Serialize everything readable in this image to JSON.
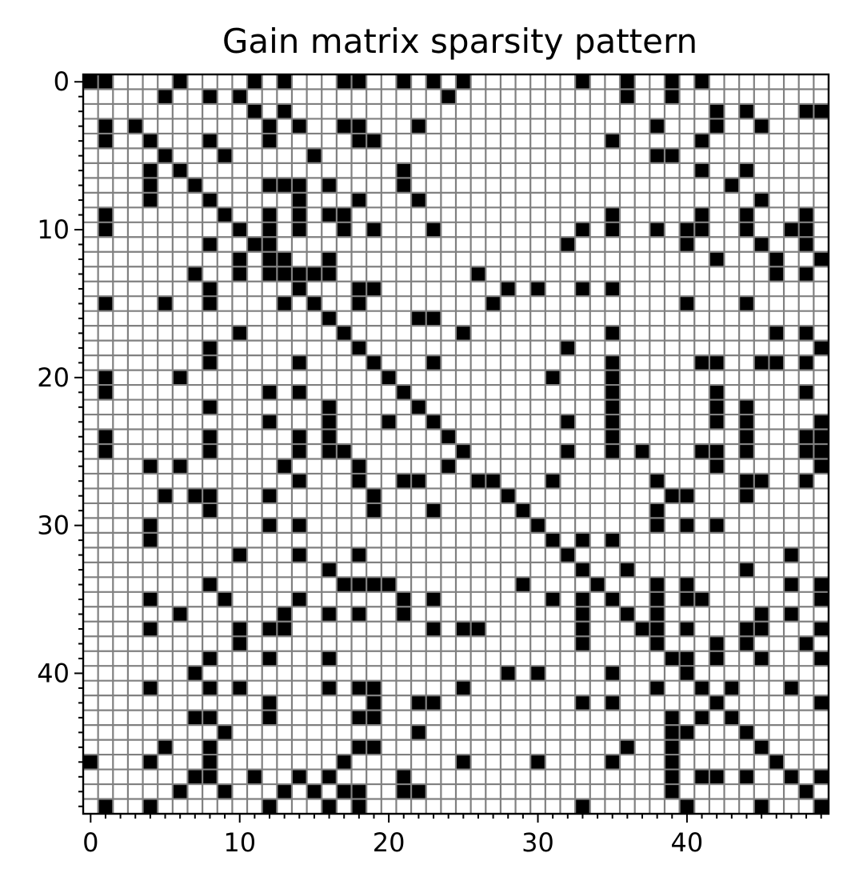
{
  "chart_data": {
    "type": "heatmap",
    "title": "Gain matrix sparsity pattern",
    "xlabel": "",
    "ylabel": "",
    "n_rows": 50,
    "n_cols": 50,
    "x_ticks": [
      0,
      10,
      20,
      30,
      40
    ],
    "y_ticks": [
      0,
      10,
      20,
      30,
      40
    ],
    "x_tick_labels": [
      "0",
      "10",
      "20",
      "30",
      "40"
    ],
    "y_tick_labels": [
      "0",
      "10",
      "20",
      "30",
      "40"
    ],
    "xlim": [
      -0.5,
      49.5
    ],
    "ylim": [
      49.5,
      -0.5
    ],
    "grid": true,
    "colors": {
      "nonzero": "#000000",
      "zero": "#ffffff",
      "grid": "#808080"
    },
    "nonzeros": [
      [
        0,
        0
      ],
      [
        0,
        1
      ],
      [
        0,
        6
      ],
      [
        0,
        11
      ],
      [
        0,
        13
      ],
      [
        0,
        17
      ],
      [
        0,
        18
      ],
      [
        0,
        21
      ],
      [
        0,
        23
      ],
      [
        0,
        25
      ],
      [
        0,
        33
      ],
      [
        0,
        36
      ],
      [
        0,
        39
      ],
      [
        0,
        41
      ],
      [
        1,
        5
      ],
      [
        1,
        8
      ],
      [
        1,
        10
      ],
      [
        1,
        24
      ],
      [
        1,
        36
      ],
      [
        1,
        39
      ],
      [
        2,
        11
      ],
      [
        2,
        13
      ],
      [
        2,
        42
      ],
      [
        2,
        44
      ],
      [
        2,
        48
      ],
      [
        2,
        49
      ],
      [
        3,
        1
      ],
      [
        3,
        3
      ],
      [
        3,
        12
      ],
      [
        3,
        14
      ],
      [
        3,
        17
      ],
      [
        3,
        18
      ],
      [
        3,
        22
      ],
      [
        3,
        38
      ],
      [
        3,
        42
      ],
      [
        3,
        45
      ],
      [
        4,
        1
      ],
      [
        4,
        4
      ],
      [
        4,
        8
      ],
      [
        4,
        12
      ],
      [
        4,
        18
      ],
      [
        4,
        19
      ],
      [
        4,
        35
      ],
      [
        4,
        41
      ],
      [
        5,
        5
      ],
      [
        5,
        9
      ],
      [
        5,
        15
      ],
      [
        5,
        38
      ],
      [
        5,
        39
      ],
      [
        6,
        4
      ],
      [
        6,
        6
      ],
      [
        6,
        21
      ],
      [
        6,
        41
      ],
      [
        6,
        44
      ],
      [
        7,
        4
      ],
      [
        7,
        7
      ],
      [
        7,
        12
      ],
      [
        7,
        13
      ],
      [
        7,
        14
      ],
      [
        7,
        16
      ],
      [
        7,
        21
      ],
      [
        7,
        43
      ],
      [
        8,
        4
      ],
      [
        8,
        8
      ],
      [
        8,
        14
      ],
      [
        8,
        18
      ],
      [
        8,
        22
      ],
      [
        8,
        45
      ],
      [
        9,
        1
      ],
      [
        9,
        9
      ],
      [
        9,
        12
      ],
      [
        9,
        14
      ],
      [
        9,
        16
      ],
      [
        9,
        17
      ],
      [
        9,
        35
      ],
      [
        9,
        41
      ],
      [
        9,
        44
      ],
      [
        9,
        48
      ],
      [
        10,
        1
      ],
      [
        10,
        10
      ],
      [
        10,
        12
      ],
      [
        10,
        14
      ],
      [
        10,
        17
      ],
      [
        10,
        19
      ],
      [
        10,
        23
      ],
      [
        10,
        33
      ],
      [
        10,
        35
      ],
      [
        10,
        38
      ],
      [
        10,
        40
      ],
      [
        10,
        41
      ],
      [
        10,
        44
      ],
      [
        10,
        47
      ],
      [
        10,
        48
      ],
      [
        11,
        8
      ],
      [
        11,
        11
      ],
      [
        11,
        12
      ],
      [
        11,
        32
      ],
      [
        11,
        40
      ],
      [
        11,
        45
      ],
      [
        11,
        48
      ],
      [
        12,
        10
      ],
      [
        12,
        12
      ],
      [
        12,
        13
      ],
      [
        12,
        16
      ],
      [
        12,
        42
      ],
      [
        12,
        46
      ],
      [
        12,
        49
      ],
      [
        13,
        7
      ],
      [
        13,
        10
      ],
      [
        13,
        12
      ],
      [
        13,
        13
      ],
      [
        13,
        14
      ],
      [
        13,
        15
      ],
      [
        13,
        16
      ],
      [
        13,
        26
      ],
      [
        13,
        46
      ],
      [
        13,
        48
      ],
      [
        14,
        8
      ],
      [
        14,
        14
      ],
      [
        14,
        18
      ],
      [
        14,
        19
      ],
      [
        14,
        28
      ],
      [
        14,
        30
      ],
      [
        14,
        33
      ],
      [
        14,
        35
      ],
      [
        15,
        1
      ],
      [
        15,
        5
      ],
      [
        15,
        8
      ],
      [
        15,
        13
      ],
      [
        15,
        15
      ],
      [
        15,
        18
      ],
      [
        15,
        27
      ],
      [
        15,
        40
      ],
      [
        15,
        44
      ],
      [
        16,
        16
      ],
      [
        16,
        22
      ],
      [
        16,
        23
      ],
      [
        17,
        10
      ],
      [
        17,
        17
      ],
      [
        17,
        25
      ],
      [
        17,
        35
      ],
      [
        17,
        46
      ],
      [
        17,
        48
      ],
      [
        18,
        8
      ],
      [
        18,
        18
      ],
      [
        18,
        32
      ],
      [
        18,
        49
      ],
      [
        19,
        8
      ],
      [
        19,
        14
      ],
      [
        19,
        19
      ],
      [
        19,
        23
      ],
      [
        19,
        35
      ],
      [
        19,
        41
      ],
      [
        19,
        42
      ],
      [
        19,
        45
      ],
      [
        19,
        46
      ],
      [
        19,
        48
      ],
      [
        20,
        1
      ],
      [
        20,
        6
      ],
      [
        20,
        20
      ],
      [
        20,
        31
      ],
      [
        20,
        35
      ],
      [
        21,
        1
      ],
      [
        21,
        12
      ],
      [
        21,
        14
      ],
      [
        21,
        21
      ],
      [
        21,
        35
      ],
      [
        21,
        42
      ],
      [
        21,
        48
      ],
      [
        22,
        8
      ],
      [
        22,
        16
      ],
      [
        22,
        22
      ],
      [
        22,
        35
      ],
      [
        22,
        42
      ],
      [
        22,
        44
      ],
      [
        23,
        12
      ],
      [
        23,
        16
      ],
      [
        23,
        20
      ],
      [
        23,
        23
      ],
      [
        23,
        32
      ],
      [
        23,
        35
      ],
      [
        23,
        42
      ],
      [
        23,
        44
      ],
      [
        23,
        49
      ],
      [
        24,
        1
      ],
      [
        24,
        8
      ],
      [
        24,
        14
      ],
      [
        24,
        16
      ],
      [
        24,
        24
      ],
      [
        24,
        35
      ],
      [
        24,
        44
      ],
      [
        24,
        48
      ],
      [
        24,
        49
      ],
      [
        25,
        1
      ],
      [
        25,
        8
      ],
      [
        25,
        14
      ],
      [
        25,
        16
      ],
      [
        25,
        17
      ],
      [
        25,
        25
      ],
      [
        25,
        32
      ],
      [
        25,
        35
      ],
      [
        25,
        37
      ],
      [
        25,
        41
      ],
      [
        25,
        42
      ],
      [
        25,
        44
      ],
      [
        25,
        48
      ],
      [
        25,
        49
      ],
      [
        26,
        4
      ],
      [
        26,
        6
      ],
      [
        26,
        13
      ],
      [
        26,
        18
      ],
      [
        26,
        24
      ],
      [
        26,
        42
      ],
      [
        26,
        49
      ],
      [
        27,
        14
      ],
      [
        27,
        18
      ],
      [
        27,
        21
      ],
      [
        27,
        22
      ],
      [
        27,
        26
      ],
      [
        27,
        27
      ],
      [
        27,
        31
      ],
      [
        27,
        38
      ],
      [
        27,
        44
      ],
      [
        27,
        45
      ],
      [
        27,
        48
      ],
      [
        28,
        5
      ],
      [
        28,
        7
      ],
      [
        28,
        8
      ],
      [
        28,
        12
      ],
      [
        28,
        19
      ],
      [
        28,
        28
      ],
      [
        28,
        39
      ],
      [
        28,
        40
      ],
      [
        28,
        44
      ],
      [
        29,
        8
      ],
      [
        29,
        19
      ],
      [
        29,
        23
      ],
      [
        29,
        29
      ],
      [
        29,
        38
      ],
      [
        30,
        4
      ],
      [
        30,
        12
      ],
      [
        30,
        14
      ],
      [
        30,
        30
      ],
      [
        30,
        38
      ],
      [
        30,
        40
      ],
      [
        30,
        42
      ],
      [
        31,
        4
      ],
      [
        31,
        31
      ],
      [
        31,
        33
      ],
      [
        31,
        35
      ],
      [
        32,
        10
      ],
      [
        32,
        14
      ],
      [
        32,
        18
      ],
      [
        32,
        32
      ],
      [
        32,
        47
      ],
      [
        33,
        16
      ],
      [
        33,
        33
      ],
      [
        33,
        36
      ],
      [
        33,
        44
      ],
      [
        34,
        8
      ],
      [
        34,
        17
      ],
      [
        34,
        18
      ],
      [
        34,
        19
      ],
      [
        34,
        20
      ],
      [
        34,
        29
      ],
      [
        34,
        34
      ],
      [
        34,
        38
      ],
      [
        34,
        40
      ],
      [
        34,
        47
      ],
      [
        34,
        49
      ],
      [
        35,
        4
      ],
      [
        35,
        9
      ],
      [
        35,
        14
      ],
      [
        35,
        21
      ],
      [
        35,
        23
      ],
      [
        35,
        31
      ],
      [
        35,
        33
      ],
      [
        35,
        35
      ],
      [
        35,
        38
      ],
      [
        35,
        40
      ],
      [
        35,
        41
      ],
      [
        35,
        49
      ],
      [
        36,
        6
      ],
      [
        36,
        13
      ],
      [
        36,
        16
      ],
      [
        36,
        18
      ],
      [
        36,
        21
      ],
      [
        36,
        33
      ],
      [
        36,
        36
      ],
      [
        36,
        38
      ],
      [
        36,
        45
      ],
      [
        36,
        47
      ],
      [
        37,
        4
      ],
      [
        37,
        10
      ],
      [
        37,
        12
      ],
      [
        37,
        13
      ],
      [
        37,
        23
      ],
      [
        37,
        25
      ],
      [
        37,
        26
      ],
      [
        37,
        33
      ],
      [
        37,
        37
      ],
      [
        37,
        38
      ],
      [
        37,
        40
      ],
      [
        37,
        44
      ],
      [
        37,
        45
      ],
      [
        37,
        49
      ],
      [
        38,
        10
      ],
      [
        38,
        33
      ],
      [
        38,
        38
      ],
      [
        38,
        42
      ],
      [
        38,
        44
      ],
      [
        38,
        48
      ],
      [
        39,
        8
      ],
      [
        39,
        12
      ],
      [
        39,
        16
      ],
      [
        39,
        39
      ],
      [
        39,
        40
      ],
      [
        39,
        42
      ],
      [
        39,
        45
      ],
      [
        39,
        49
      ],
      [
        40,
        7
      ],
      [
        40,
        28
      ],
      [
        40,
        30
      ],
      [
        40,
        35
      ],
      [
        40,
        40
      ],
      [
        41,
        4
      ],
      [
        41,
        8
      ],
      [
        41,
        10
      ],
      [
        41,
        16
      ],
      [
        41,
        18
      ],
      [
        41,
        19
      ],
      [
        41,
        25
      ],
      [
        41,
        38
      ],
      [
        41,
        41
      ],
      [
        41,
        43
      ],
      [
        41,
        47
      ],
      [
        42,
        12
      ],
      [
        42,
        19
      ],
      [
        42,
        22
      ],
      [
        42,
        23
      ],
      [
        42,
        33
      ],
      [
        42,
        35
      ],
      [
        42,
        42
      ],
      [
        42,
        49
      ],
      [
        43,
        7
      ],
      [
        43,
        8
      ],
      [
        43,
        12
      ],
      [
        43,
        18
      ],
      [
        43,
        19
      ],
      [
        43,
        39
      ],
      [
        43,
        41
      ],
      [
        43,
        43
      ],
      [
        44,
        9
      ],
      [
        44,
        22
      ],
      [
        44,
        39
      ],
      [
        44,
        40
      ],
      [
        44,
        44
      ],
      [
        45,
        5
      ],
      [
        45,
        8
      ],
      [
        45,
        18
      ],
      [
        45,
        19
      ],
      [
        45,
        36
      ],
      [
        45,
        39
      ],
      [
        45,
        45
      ],
      [
        46,
        0
      ],
      [
        46,
        4
      ],
      [
        46,
        8
      ],
      [
        46,
        17
      ],
      [
        46,
        25
      ],
      [
        46,
        30
      ],
      [
        46,
        35
      ],
      [
        46,
        39
      ],
      [
        46,
        46
      ],
      [
        47,
        7
      ],
      [
        47,
        8
      ],
      [
        47,
        11
      ],
      [
        47,
        14
      ],
      [
        47,
        16
      ],
      [
        47,
        21
      ],
      [
        47,
        39
      ],
      [
        47,
        41
      ],
      [
        47,
        42
      ],
      [
        47,
        44
      ],
      [
        47,
        47
      ],
      [
        47,
        49
      ],
      [
        48,
        6
      ],
      [
        48,
        9
      ],
      [
        48,
        13
      ],
      [
        48,
        15
      ],
      [
        48,
        17
      ],
      [
        48,
        18
      ],
      [
        48,
        21
      ],
      [
        48,
        22
      ],
      [
        48,
        39
      ],
      [
        48,
        48
      ],
      [
        49,
        1
      ],
      [
        49,
        4
      ],
      [
        49,
        12
      ],
      [
        49,
        16
      ],
      [
        49,
        18
      ],
      [
        49,
        33
      ],
      [
        49,
        40
      ],
      [
        49,
        45
      ],
      [
        49,
        49
      ]
    ]
  }
}
